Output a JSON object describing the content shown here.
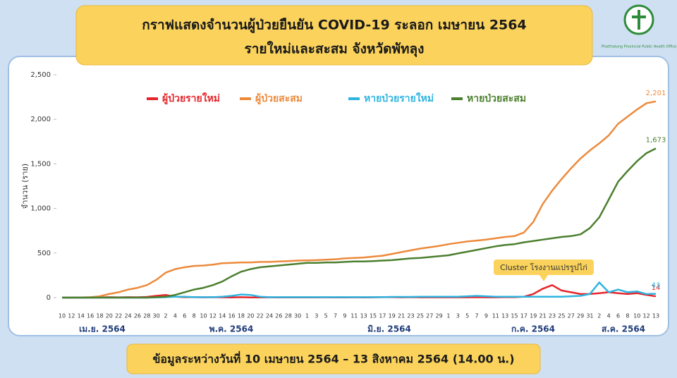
{
  "logo_text": "Phatthalung Provincial Public Health Office",
  "chart_data": {
    "type": "line",
    "title": "กราฟแสดงจำนวนผู้ป่วยยืนยัน COVID-19 ระลอก เมษายน 2564",
    "subtitle": "รายใหม่และสะสม จังหวัดพัทลุง",
    "y_label": "จำนวน (ราย)",
    "note": "ข้อมูลระหว่างวันที่ 10 เมษายน 2564 – 13 สิงหาคม 2564 (14.00 น.)",
    "annotation": "Cluster โรงงานแปรรูปไก่",
    "month_labels": [
      "เม.ย. 2564",
      "พ.ค. 2564",
      "มิ.ย. 2564",
      "ก.ค. 2564",
      "ส.ค. 2564"
    ],
    "categories": [
      "10",
      "12",
      "14",
      "16",
      "18",
      "20",
      "22",
      "24",
      "26",
      "28",
      "30",
      "2",
      "4",
      "6",
      "8",
      "10",
      "12",
      "14",
      "16",
      "18",
      "20",
      "22",
      "24",
      "26",
      "28",
      "30",
      "1",
      "3",
      "5",
      "7",
      "9",
      "11",
      "13",
      "15",
      "17",
      "19",
      "21",
      "23",
      "25",
      "27",
      "29",
      "1",
      "3",
      "5",
      "7",
      "9",
      "11",
      "13",
      "15",
      "17",
      "19",
      "21",
      "23",
      "25",
      "27",
      "29",
      "31",
      "2",
      "4",
      "6",
      "8",
      "10",
      "12",
      "13"
    ],
    "ylim": [
      0,
      2500
    ],
    "yticks": [
      0,
      500,
      {
        "value": 1000,
        "label": "1,000"
      },
      {
        "value": 1500,
        "label": "1,500"
      },
      {
        "value": 2000,
        "label": "2,000"
      },
      {
        "value": 2500,
        "label": "2,500"
      }
    ],
    "grid": false,
    "legend": "top",
    "series": [
      {
        "name": "ผู้ป่วยรายใหม่",
        "color": "#e5262c",
        "last_label": "14",
        "values": [
          0,
          0,
          0,
          0,
          2,
          5,
          3,
          5,
          4,
          8,
          20,
          30,
          10,
          5,
          5,
          3,
          5,
          3,
          2,
          5,
          2,
          2,
          3,
          2,
          2,
          2,
          2,
          2,
          3,
          2,
          2,
          3,
          2,
          3,
          5,
          5,
          3,
          5,
          3,
          3,
          3,
          3,
          3,
          3,
          5,
          3,
          3,
          5,
          5,
          10,
          40,
          100,
          140,
          80,
          60,
          40,
          40,
          50,
          60,
          50,
          40,
          50,
          30,
          14
        ]
      },
      {
        "name": "ผู้ป่วยสะสม",
        "color": "#ec8a3c",
        "last_label": "2,201",
        "values": [
          0,
          0,
          2,
          5,
          15,
          40,
          60,
          90,
          110,
          140,
          200,
          280,
          320,
          340,
          355,
          360,
          370,
          385,
          390,
          395,
          395,
          400,
          400,
          405,
          410,
          415,
          418,
          420,
          425,
          430,
          440,
          445,
          450,
          460,
          470,
          490,
          510,
          530,
          550,
          565,
          580,
          600,
          615,
          630,
          640,
          650,
          665,
          680,
          690,
          730,
          850,
          1050,
          1200,
          1330,
          1450,
          1560,
          1650,
          1730,
          1820,
          1950,
          2030,
          2110,
          2180,
          2201
        ]
      },
      {
        "name": "หายป่วยรายใหม่",
        "color": "#2fb4e0",
        "last_label": "43",
        "values": [
          0,
          0,
          0,
          0,
          0,
          0,
          0,
          0,
          0,
          0,
          2,
          5,
          10,
          10,
          5,
          5,
          5,
          10,
          20,
          35,
          30,
          10,
          5,
          5,
          5,
          5,
          5,
          5,
          5,
          5,
          5,
          5,
          5,
          5,
          5,
          8,
          8,
          8,
          10,
          10,
          10,
          10,
          10,
          15,
          20,
          15,
          10,
          10,
          10,
          10,
          10,
          10,
          10,
          10,
          15,
          20,
          40,
          170,
          60,
          90,
          60,
          70,
          40,
          43
        ]
      },
      {
        "name": "หายป่วยสะสม",
        "color": "#4b7f2e",
        "last_label": "1,673",
        "values": [
          0,
          0,
          0,
          0,
          0,
          0,
          0,
          0,
          0,
          0,
          5,
          10,
          30,
          60,
          90,
          110,
          140,
          180,
          240,
          290,
          320,
          340,
          350,
          360,
          370,
          380,
          390,
          390,
          395,
          395,
          400,
          405,
          405,
          410,
          415,
          420,
          430,
          440,
          445,
          455,
          465,
          475,
          495,
          515,
          535,
          555,
          575,
          590,
          600,
          620,
          635,
          650,
          665,
          680,
          690,
          710,
          780,
          900,
          1100,
          1300,
          1420,
          1530,
          1620,
          1673
        ]
      }
    ]
  }
}
